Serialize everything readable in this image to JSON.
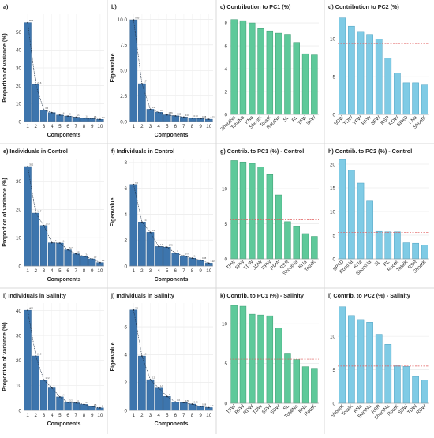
{
  "figure": {
    "colors": {
      "blue": "#3d75ad",
      "blue_dark": "#2c5d8f",
      "green": "#5ec99a",
      "green_dark": "#3a9a70",
      "skyblue": "#7fcbe5",
      "skyblue_dark": "#4a9fbf",
      "ref_line": "#e05a5a",
      "grid": "#e6e6e6",
      "text": "#222222"
    }
  },
  "chart_data": [
    {
      "id": "a",
      "type": "bar",
      "title": "a)",
      "xlabel": "Components",
      "ylabel": "Proportion of variance (%)",
      "categories": [
        "1",
        "2",
        "3",
        "4",
        "5",
        "6",
        "7",
        "8",
        "9",
        "10"
      ],
      "values": [
        55.3,
        20.6,
        6.5,
        5.0,
        3.6,
        3.0,
        2.4,
        1.8,
        1.6,
        1.2
      ],
      "yticks": [
        0,
        10,
        20,
        30,
        40,
        50
      ],
      "ylim": [
        0,
        60
      ],
      "style": "scree",
      "color": "blue"
    },
    {
      "id": "b",
      "type": "bar",
      "title": "b)",
      "xlabel": "Components",
      "ylabel": "Eigenvalue",
      "categories": [
        "1",
        "2",
        "3",
        "4",
        "5",
        "6",
        "7",
        "8",
        "9",
        "10"
      ],
      "values": [
        9.95,
        3.7,
        1.2,
        0.9,
        0.65,
        0.55,
        0.43,
        0.33,
        0.28,
        0.22
      ],
      "yticks": [
        0.0,
        2.5,
        5.0,
        7.5,
        10.0
      ],
      "ylim": [
        0,
        10.5
      ],
      "style": "scree",
      "color": "blue"
    },
    {
      "id": "c",
      "type": "bar",
      "title": "c) Contribution to PC1 (%)",
      "categories": [
        "ShootNa",
        "TotalNa",
        "KNa",
        "ShootK",
        "TotalK",
        "RootNa",
        "SL",
        "RL",
        "TFW",
        "SFW"
      ],
      "values": [
        8.3,
        8.2,
        8.0,
        7.5,
        7.3,
        7.1,
        7.0,
        6.3,
        5.3,
        5.2
      ],
      "yticks": [
        0,
        2,
        4,
        6,
        8
      ],
      "ylim": [
        0,
        8.9
      ],
      "ref": 5.55,
      "style": "contrib",
      "color": "green"
    },
    {
      "id": "d",
      "type": "bar",
      "title": "d) Contribution to PC2 (%)",
      "categories": [
        "SDW",
        "TDW",
        "TFW",
        "RFW",
        "SFW",
        "RSR",
        "RDW",
        "SPAD",
        "KNa",
        "ShootK"
      ],
      "values": [
        12.8,
        11.7,
        11.0,
        10.6,
        10.0,
        7.5,
        5.5,
        4.2,
        4.2,
        3.9
      ],
      "yticks": [
        0,
        5,
        10
      ],
      "ylim": [
        0,
        13.5
      ],
      "ref": 9.4,
      "style": "contrib",
      "color": "skyblue"
    },
    {
      "id": "e",
      "type": "bar",
      "title": "e) Individuals in Control",
      "xlabel": "Components",
      "ylabel": "Proportion of variance (%)",
      "categories": [
        "1",
        "2",
        "3",
        "4",
        "5",
        "6",
        "7",
        "8",
        "9",
        "10"
      ],
      "values": [
        35.2,
        18.7,
        14.3,
        8.2,
        8.1,
        5.7,
        4.3,
        3.4,
        2.5,
        1.2
      ],
      "yticks": [
        0,
        10,
        20,
        30
      ],
      "ylim": [
        0,
        38
      ],
      "style": "scree",
      "color": "blue"
    },
    {
      "id": "f",
      "type": "bar",
      "title": "f) Individuals in Control",
      "xlabel": "Components",
      "ylabel": "Eigenvalue",
      "categories": [
        "1",
        "2",
        "3",
        "4",
        "5",
        "6",
        "7",
        "8",
        "9",
        "10"
      ],
      "values": [
        6.3,
        3.4,
        2.6,
        1.5,
        1.45,
        1.0,
        0.78,
        0.6,
        0.45,
        0.22
      ],
      "yticks": [
        0,
        2,
        4,
        6,
        8
      ],
      "ylim": [
        0,
        8.3
      ],
      "style": "scree",
      "color": "blue"
    },
    {
      "id": "g",
      "type": "bar",
      "title": "g) Contrib. to PC1 (%) - Control",
      "categories": [
        "TFW",
        "SFW",
        "TDW",
        "SDW",
        "RFW",
        "RDW",
        "RSR",
        "ShootNa",
        "KNa",
        "TotalK"
      ],
      "values": [
        14.0,
        13.8,
        13.6,
        13.1,
        12.0,
        9.1,
        5.3,
        4.6,
        3.6,
        3.2
      ],
      "yticks": [
        0,
        5,
        10
      ],
      "ylim": [
        0,
        14.5
      ],
      "ref": 5.55,
      "style": "contrib",
      "color": "green"
    },
    {
      "id": "h",
      "type": "bar",
      "title": "h) Contrib. to PC2 (%) - Control",
      "categories": [
        "SPAD",
        "RootNa",
        "KNa",
        "ShootNa",
        "SL",
        "RL",
        "RootK",
        "TotalK",
        "RSR",
        "ShootK"
      ],
      "values": [
        21.0,
        18.7,
        16.0,
        12.2,
        5.8,
        5.7,
        5.7,
        3.4,
        3.3,
        2.9
      ],
      "yticks": [
        0,
        5,
        10,
        15,
        20
      ],
      "ylim": [
        0,
        21.5
      ],
      "ref": 5.55,
      "style": "contrib",
      "color": "skyblue"
    },
    {
      "id": "i",
      "type": "bar",
      "title": "i) Individuals in Salinity",
      "xlabel": "Components",
      "ylabel": "Proportion of variance (%)",
      "categories": [
        "1",
        "2",
        "3",
        "4",
        "5",
        "6",
        "7",
        "8",
        "9",
        "10"
      ],
      "values": [
        40.1,
        21.8,
        12.2,
        9.0,
        5.4,
        3.2,
        3.0,
        2.4,
        1.5,
        1.0
      ],
      "yticks": [
        0,
        10,
        20,
        30,
        40
      ],
      "ylim": [
        0,
        43
      ],
      "style": "scree",
      "color": "blue"
    },
    {
      "id": "j",
      "type": "bar",
      "title": "j) Individuals in Salinity",
      "xlabel": "Components",
      "ylabel": "Eigenvalue",
      "categories": [
        "1",
        "2",
        "3",
        "4",
        "5",
        "6",
        "7",
        "8",
        "9",
        "10"
      ],
      "values": [
        7.2,
        3.9,
        2.2,
        1.6,
        1.0,
        0.6,
        0.55,
        0.45,
        0.28,
        0.2
      ],
      "yticks": [
        0,
        2,
        4,
        6
      ],
      "ylim": [
        0,
        7.7
      ],
      "style": "scree",
      "color": "blue"
    },
    {
      "id": "k",
      "type": "bar",
      "title": "k) Contrib. to PC1 (%) - Salinity",
      "categories": [
        "TFW",
        "RFW",
        "RDW",
        "TDW",
        "SFW",
        "SDW",
        "SL",
        "TotalNa",
        "KNa",
        "RootK"
      ],
      "values": [
        12.3,
        12.2,
        11.2,
        11.1,
        11.0,
        9.5,
        6.3,
        5.5,
        4.6,
        4.4
      ],
      "yticks": [
        0,
        5,
        10
      ],
      "ylim": [
        0,
        12.8
      ],
      "ref": 5.55,
      "style": "contrib",
      "color": "green"
    },
    {
      "id": "l",
      "type": "bar",
      "title": "l) Contrib. to PC2 (%) - Salinity",
      "categories": [
        "ShootK",
        "TotalK",
        "KNa",
        "RootNa",
        "RSR",
        "ShootNa",
        "RootK",
        "SDW",
        "TDW",
        "RDW"
      ],
      "values": [
        14.4,
        13.1,
        12.5,
        12.1,
        10.3,
        8.8,
        5.6,
        5.5,
        4.0,
        3.5
      ],
      "yticks": [
        0,
        5,
        10
      ],
      "ylim": [
        0,
        15.2
      ],
      "ref": 5.55,
      "style": "contrib",
      "color": "skyblue"
    }
  ]
}
